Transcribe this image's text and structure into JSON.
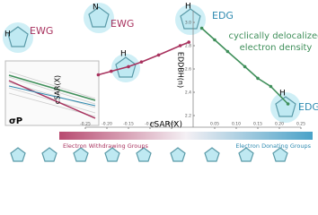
{
  "chart_data": {
    "type": "scatter",
    "xlabel": "cSAR(X)",
    "ylabel": "EDDBH(n)",
    "xlim": [
      -0.25,
      0.25
    ],
    "xticks": [
      -0.25,
      {
        "value": -0.2,
        "label": "-0.20"
      },
      -0.15,
      {
        "value": -0.1,
        "label": "-0.10"
      },
      -0.05,
      0.05,
      {
        "value": 0.1,
        "label": "0.10"
      },
      0.15,
      {
        "value": 0.2,
        "label": "0.20"
      },
      0.25
    ],
    "ylim": [
      2.1,
      3.1
    ],
    "yticks": [
      2.2,
      2.4,
      2.6,
      2.8,
      {
        "value": 3,
        "label": "3.0"
      }
    ],
    "series": [
      {
        "name": "Electron Withdrawing Groups",
        "color": "#a8325e",
        "x": [
          -0.22,
          -0.19,
          -0.15,
          -0.12,
          -0.08,
          -0.03,
          -0.01
        ],
        "values": [
          2.55,
          2.58,
          2.62,
          2.66,
          2.72,
          2.8,
          2.83
        ]
      },
      {
        "name": "Electron Donating Groups",
        "color": "#3f8f5a",
        "x": [
          0.02,
          0.05,
          0.08,
          0.12,
          0.15,
          0.18,
          0.22
        ],
        "values": [
          2.95,
          2.85,
          2.75,
          2.62,
          2.52,
          2.45,
          2.3
        ]
      }
    ],
    "annotations": {
      "ewg": "EWG",
      "edg": "EDG",
      "caption_1": "cyclically delocalized",
      "caption_2": "electron density",
      "inset_xlabel": "cSAR(X)",
      "inset_ylabel": "σP",
      "atom_n": "N",
      "atom_h": "H"
    }
  }
}
